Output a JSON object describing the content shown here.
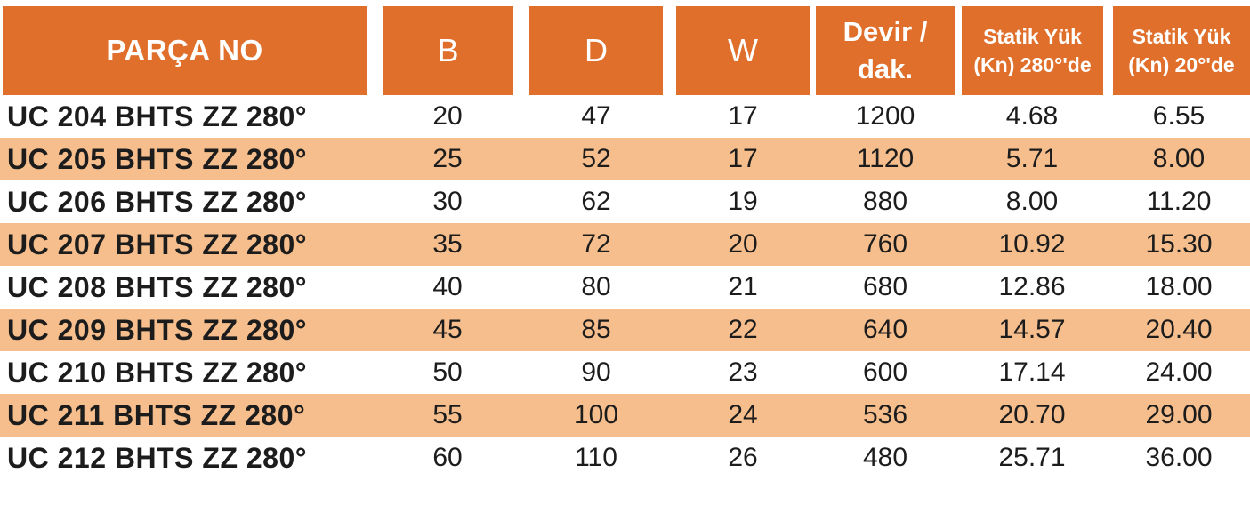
{
  "colors": {
    "header_bg": "#E06F2B",
    "header_text": "#FFFFFF",
    "row_alt_bg": "#F6BE8C",
    "row_bg": "#FFFFFF",
    "body_text": "#1C1C1C"
  },
  "table": {
    "headers": {
      "parca_no": "PARÇA NO",
      "b": "B",
      "d": "D",
      "w": "W",
      "devir": "Devir / dak.",
      "statik_280": "Statik Yük (Kn) 280°'de",
      "statik_20": "Statik Yük (Kn) 20°'de"
    },
    "rows": [
      [
        "UC 204 BHTS ZZ 280°",
        "20",
        "47",
        "17",
        "1200",
        "4.68",
        "6.55"
      ],
      [
        "UC 205 BHTS ZZ 280°",
        "25",
        "52",
        "17",
        "1120",
        "5.71",
        "8.00"
      ],
      [
        "UC 206 BHTS ZZ 280°",
        "30",
        "62",
        "19",
        "880",
        "8.00",
        "11.20"
      ],
      [
        "UC 207 BHTS ZZ 280°",
        "35",
        "72",
        "20",
        "760",
        "10.92",
        "15.30"
      ],
      [
        "UC 208 BHTS ZZ 280°",
        "40",
        "80",
        "21",
        "680",
        "12.86",
        "18.00"
      ],
      [
        "UC 209 BHTS ZZ 280°",
        "45",
        "85",
        "22",
        "640",
        "14.57",
        "20.40"
      ],
      [
        "UC 210 BHTS ZZ 280°",
        "50",
        "90",
        "23",
        "600",
        "17.14",
        "24.00"
      ],
      [
        "UC 211 BHTS ZZ 280°",
        "55",
        "100",
        "24",
        "536",
        "20.70",
        "29.00"
      ],
      [
        "UC 212 BHTS ZZ 280°",
        "60",
        "110",
        "26",
        "480",
        "25.71",
        "36.00"
      ]
    ]
  }
}
